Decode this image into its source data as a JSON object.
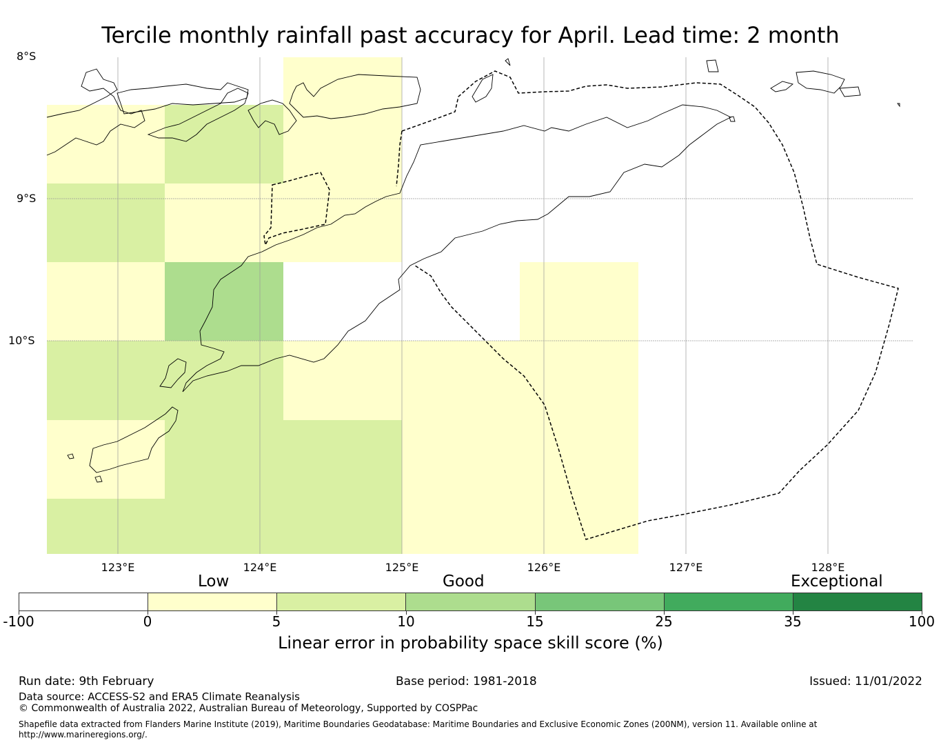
{
  "title": "Tercile monthly rainfall past accuracy for April. Lead time: 2 month",
  "map": {
    "lat_labels": [
      "8°S",
      "9°S",
      "10°S"
    ],
    "lon_labels": [
      "123°E",
      "124°E",
      "125°E",
      "126°E",
      "127°E",
      "128°E"
    ],
    "skill_classes_colors": {
      "lt0": "#ffffff",
      "0-5": "#ffffcc",
      "5-10": "#d9f0a3",
      "10-15": "#addd8e",
      "15-25": "#78c679",
      "25-35": "#41ab5d",
      "35-100": "#238443"
    }
  },
  "colorbar": {
    "categories": [
      "Low",
      "Good",
      "Exceptional"
    ],
    "ticks": [
      "-100",
      "0",
      "5",
      "10",
      "15",
      "25",
      "35",
      "100"
    ],
    "colors": [
      "#ffffff",
      "#ffffcc",
      "#d9f0a3",
      "#addd8e",
      "#78c679",
      "#41ab5d",
      "#238443"
    ],
    "label": "Linear error in probability space skill score (%)"
  },
  "footer": {
    "run_date": "Run date: 9th February",
    "base_period": "Base period: 1981-2018",
    "issued": "Issued: 11/01/2022",
    "data_source": "Data source: ACCESS-S2 and ERA5 Climate Reanalysis",
    "copyright": "© Commonwealth of Australia 2022, Australian Bureau of Meteorology, Supported by COSPPac",
    "shapefile": "Shapefile data extracted from Flanders Marine Institute (2019), Maritime Boundaries Geodatabase: Maritime Boundaries and Exclusive Economic Zones (200NM), version 11. Available online at http://www.marineregions.org/."
  }
}
